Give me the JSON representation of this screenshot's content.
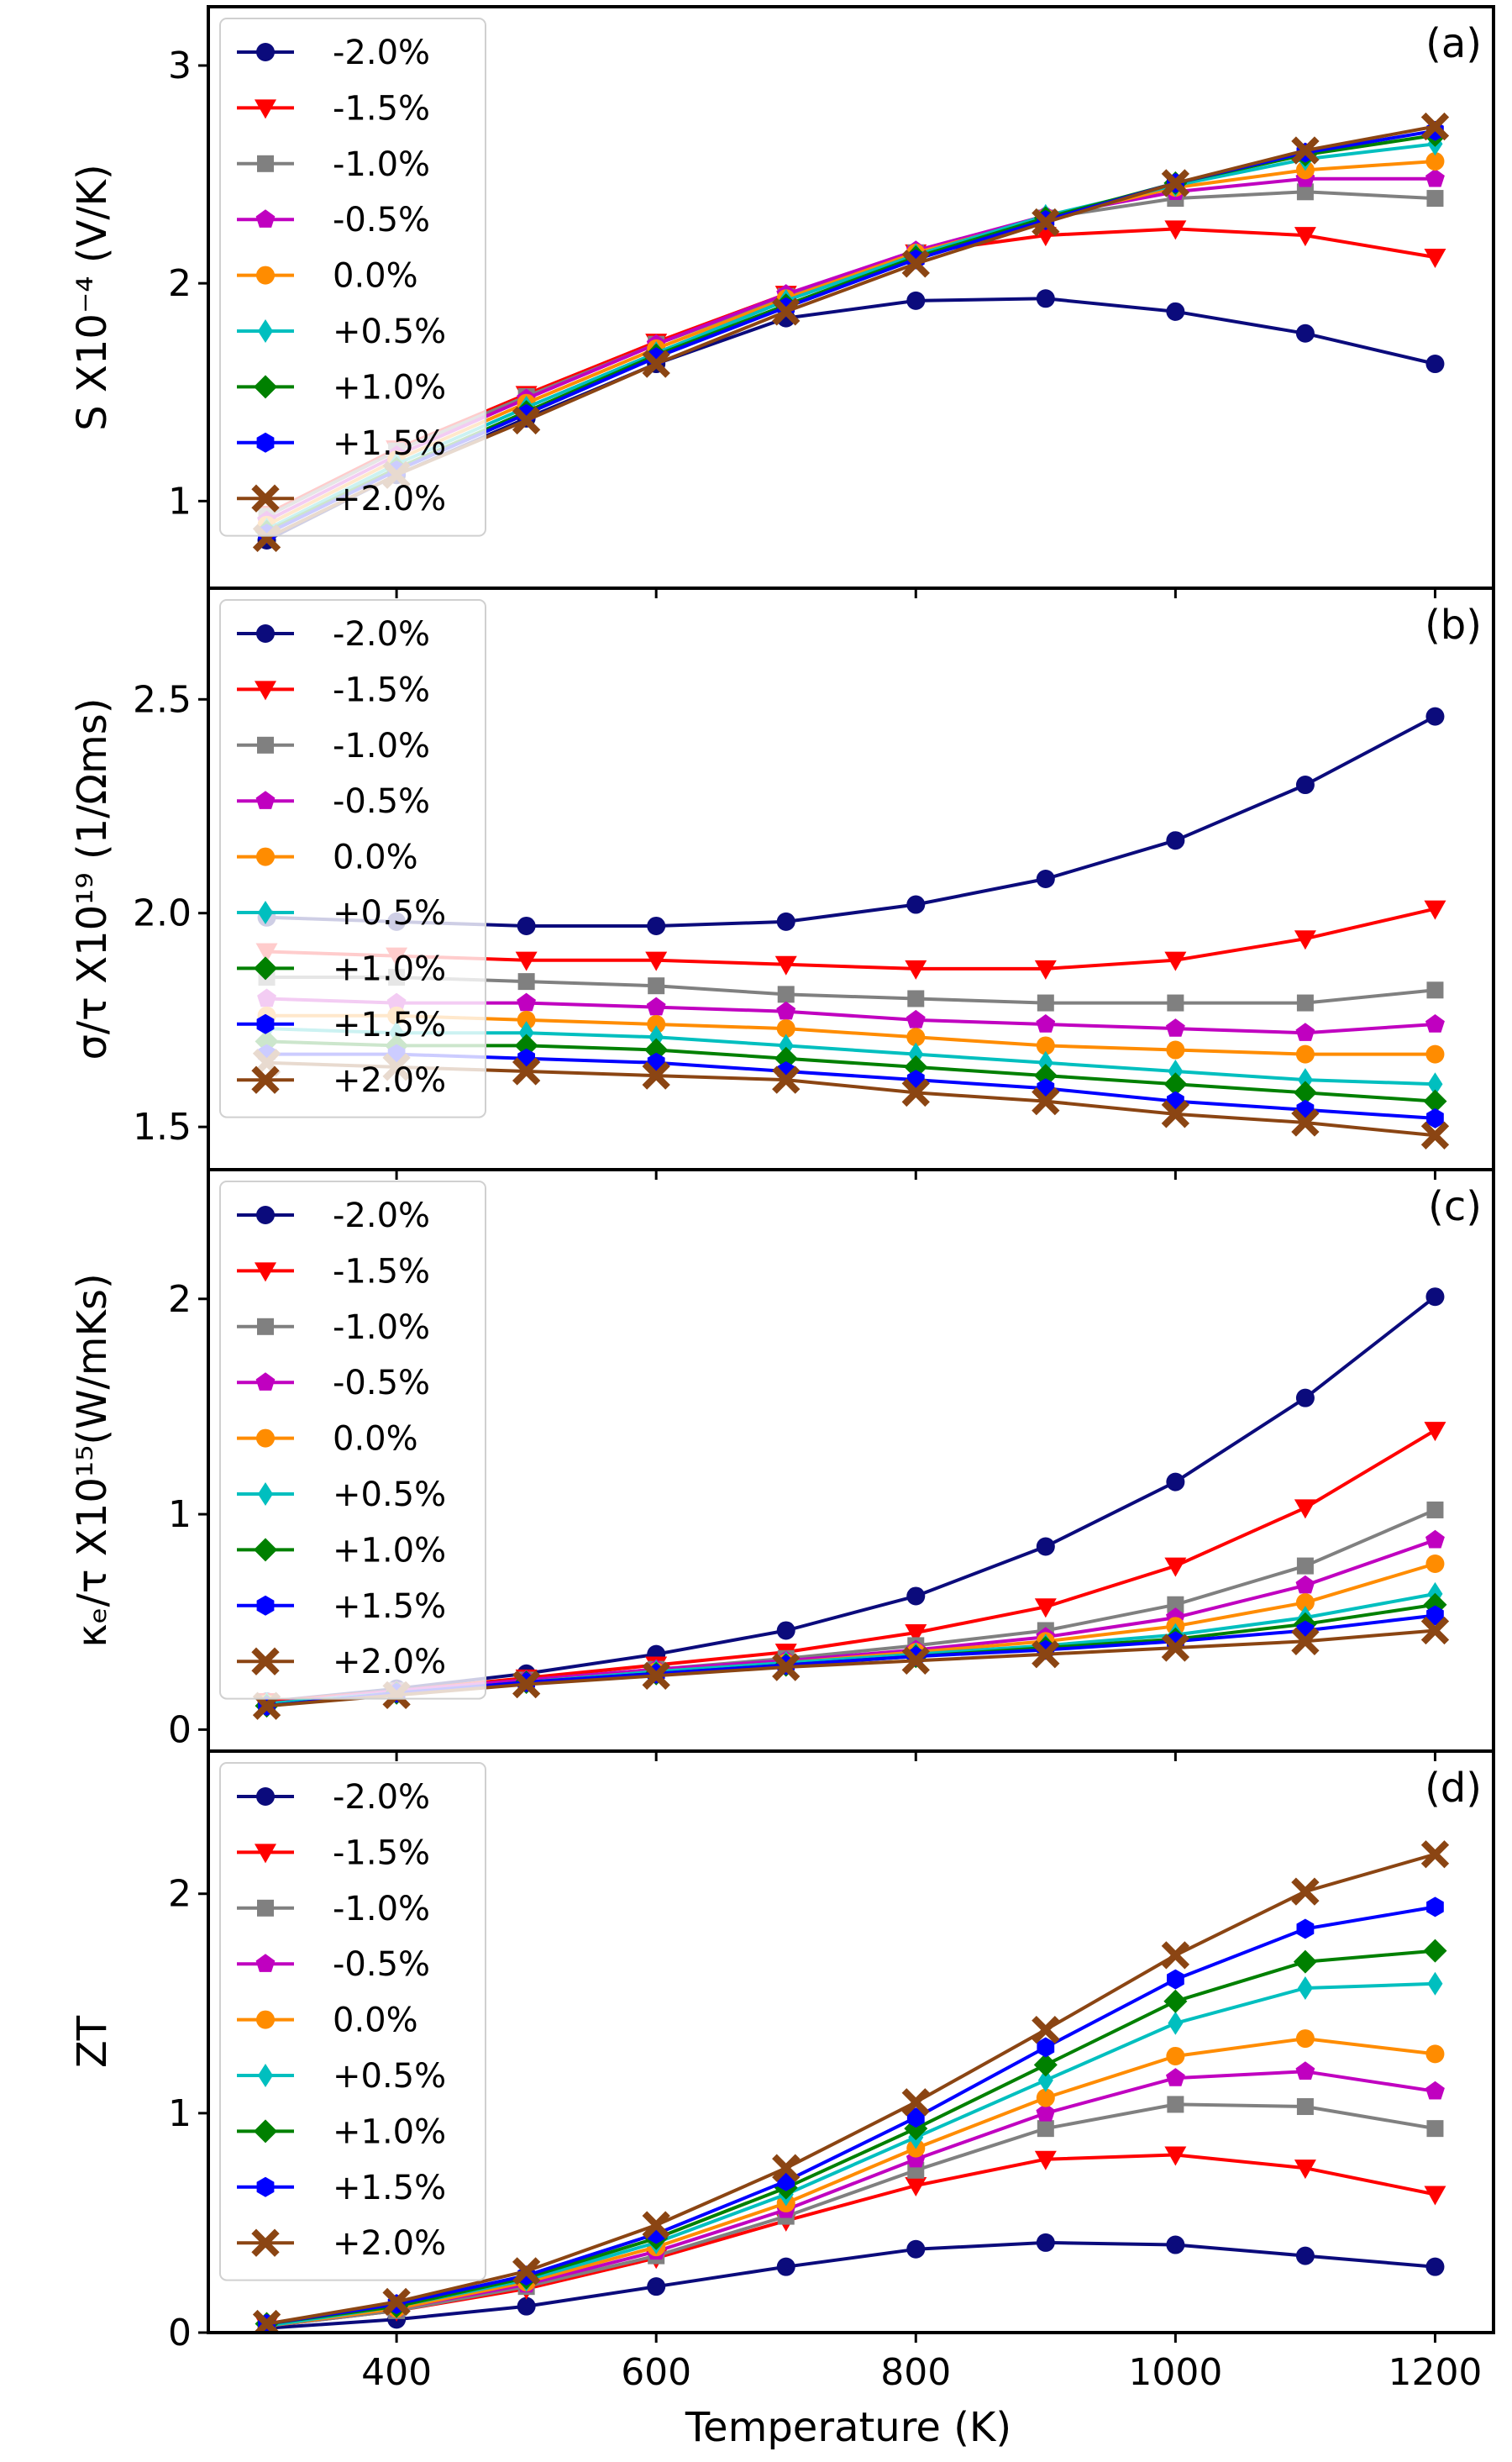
{
  "figure": {
    "xlabel": "Temperature (K)",
    "xlim": [
      255,
      1245
    ],
    "xticks": [
      400,
      600,
      800,
      1000,
      1200
    ],
    "xtick_labels": [
      "400",
      "600",
      "800",
      "1000",
      "1200"
    ]
  },
  "chart_data": [
    {
      "type": "line",
      "panel_label": "(a)",
      "ylabel": "S X10⁻⁴ (V/K)",
      "ylim": [
        0.6,
        3.27
      ],
      "yticks": [
        1,
        2,
        3
      ],
      "ytick_labels": [
        "1",
        "2",
        "3"
      ],
      "legend_position": "top-left",
      "x": [
        300,
        400,
        500,
        600,
        700,
        800,
        900,
        1000,
        1100,
        1200
      ],
      "series": [
        {
          "name": "-2.0%",
          "values": [
            0.82,
            1.12,
            1.38,
            1.63,
            1.84,
            1.92,
            1.93,
            1.87,
            1.77,
            1.63
          ]
        },
        {
          "name": "-1.5%",
          "values": [
            0.94,
            1.24,
            1.49,
            1.73,
            1.95,
            2.14,
            2.22,
            2.25,
            2.22,
            2.12
          ]
        },
        {
          "name": "-1.0%",
          "values": [
            0.93,
            1.23,
            1.48,
            1.72,
            1.94,
            2.14,
            2.3,
            2.39,
            2.42,
            2.39
          ]
        },
        {
          "name": "-0.5%",
          "values": [
            0.91,
            1.21,
            1.47,
            1.72,
            1.95,
            2.15,
            2.31,
            2.42,
            2.48,
            2.48
          ]
        },
        {
          "name": "0.0%",
          "values": [
            0.89,
            1.19,
            1.45,
            1.7,
            1.93,
            2.14,
            2.3,
            2.44,
            2.52,
            2.56
          ]
        },
        {
          "name": "+0.5%",
          "values": [
            0.87,
            1.17,
            1.43,
            1.68,
            1.92,
            2.13,
            2.31,
            2.45,
            2.57,
            2.64
          ]
        },
        {
          "name": "+1.0%",
          "values": [
            0.86,
            1.15,
            1.41,
            1.67,
            1.9,
            2.12,
            2.3,
            2.46,
            2.59,
            2.68
          ]
        },
        {
          "name": "+1.5%",
          "values": [
            0.85,
            1.14,
            1.4,
            1.66,
            1.89,
            2.11,
            2.29,
            2.46,
            2.6,
            2.7
          ]
        },
        {
          "name": "+2.0%",
          "values": [
            0.83,
            1.12,
            1.37,
            1.63,
            1.87,
            2.09,
            2.28,
            2.46,
            2.61,
            2.72
          ]
        }
      ]
    },
    {
      "type": "line",
      "panel_label": "(b)",
      "ylabel": "σ/τ X10¹⁹ (1/Ωms)",
      "ylim": [
        1.4,
        2.76
      ],
      "yticks": [
        1.5,
        2.0,
        2.5
      ],
      "ytick_labels": [
        "1.5",
        "2.0",
        "2.5"
      ],
      "legend_position": "top-left",
      "x": [
        300,
        400,
        500,
        600,
        700,
        800,
        900,
        1000,
        1100,
        1200
      ],
      "series": [
        {
          "name": "-2.0%",
          "values": [
            1.99,
            1.98,
            1.97,
            1.97,
            1.98,
            2.02,
            2.08,
            2.17,
            2.3,
            2.46
          ]
        },
        {
          "name": "-1.5%",
          "values": [
            1.91,
            1.9,
            1.89,
            1.89,
            1.88,
            1.87,
            1.87,
            1.89,
            1.94,
            2.01
          ]
        },
        {
          "name": "-1.0%",
          "values": [
            1.85,
            1.85,
            1.84,
            1.83,
            1.81,
            1.8,
            1.79,
            1.79,
            1.79,
            1.82
          ]
        },
        {
          "name": "-0.5%",
          "values": [
            1.8,
            1.79,
            1.79,
            1.78,
            1.77,
            1.75,
            1.74,
            1.73,
            1.72,
            1.74
          ]
        },
        {
          "name": "0.0%",
          "values": [
            1.76,
            1.76,
            1.75,
            1.74,
            1.73,
            1.71,
            1.69,
            1.68,
            1.67,
            1.67
          ]
        },
        {
          "name": "+0.5%",
          "values": [
            1.73,
            1.72,
            1.72,
            1.71,
            1.69,
            1.67,
            1.65,
            1.63,
            1.61,
            1.6
          ]
        },
        {
          "name": "+1.0%",
          "values": [
            1.7,
            1.69,
            1.69,
            1.68,
            1.66,
            1.64,
            1.62,
            1.6,
            1.58,
            1.56
          ]
        },
        {
          "name": "+1.5%",
          "values": [
            1.67,
            1.67,
            1.66,
            1.65,
            1.63,
            1.61,
            1.59,
            1.56,
            1.54,
            1.52
          ]
        },
        {
          "name": "+2.0%",
          "values": [
            1.65,
            1.64,
            1.63,
            1.62,
            1.61,
            1.58,
            1.56,
            1.53,
            1.51,
            1.48
          ]
        }
      ]
    },
    {
      "type": "line",
      "panel_label": "(c)",
      "ylabel": "κₑ/τ X10¹⁵(W/mKs)",
      "ylim": [
        -0.1,
        2.6
      ],
      "yticks": [
        0,
        1,
        2
      ],
      "ytick_labels": [
        "0",
        "1",
        "2"
      ],
      "legend_position": "top-left",
      "x": [
        300,
        400,
        500,
        600,
        700,
        800,
        900,
        1000,
        1100,
        1200
      ],
      "series": [
        {
          "name": "-2.0%",
          "values": [
            0.13,
            0.19,
            0.26,
            0.35,
            0.46,
            0.62,
            0.85,
            1.15,
            1.54,
            2.01
          ]
        },
        {
          "name": "-1.5%",
          "values": [
            0.13,
            0.18,
            0.24,
            0.3,
            0.36,
            0.45,
            0.57,
            0.76,
            1.03,
            1.39
          ]
        },
        {
          "name": "-1.0%",
          "values": [
            0.12,
            0.18,
            0.23,
            0.28,
            0.33,
            0.39,
            0.46,
            0.58,
            0.76,
            1.02
          ]
        },
        {
          "name": "-0.5%",
          "values": [
            0.12,
            0.18,
            0.23,
            0.28,
            0.32,
            0.37,
            0.43,
            0.52,
            0.67,
            0.88
          ]
        },
        {
          "name": "0.0%",
          "values": [
            0.12,
            0.17,
            0.22,
            0.27,
            0.31,
            0.36,
            0.41,
            0.48,
            0.59,
            0.77
          ]
        },
        {
          "name": "+0.5%",
          "values": [
            0.12,
            0.17,
            0.22,
            0.27,
            0.31,
            0.35,
            0.39,
            0.44,
            0.52,
            0.63
          ]
        },
        {
          "name": "+1.0%",
          "values": [
            0.11,
            0.17,
            0.22,
            0.26,
            0.3,
            0.34,
            0.38,
            0.42,
            0.49,
            0.58
          ]
        },
        {
          "name": "+1.5%",
          "values": [
            0.11,
            0.17,
            0.22,
            0.26,
            0.3,
            0.34,
            0.37,
            0.41,
            0.46,
            0.53
          ]
        },
        {
          "name": "+2.0%",
          "values": [
            0.11,
            0.16,
            0.21,
            0.25,
            0.29,
            0.32,
            0.35,
            0.38,
            0.41,
            0.46
          ]
        }
      ]
    },
    {
      "type": "line",
      "panel_label": "(d)",
      "ylabel": "ZT",
      "ylim": [
        0,
        2.65
      ],
      "yticks": [
        0,
        1,
        2
      ],
      "ytick_labels": [
        "0",
        "1",
        "2"
      ],
      "legend_position": "top-left",
      "x": [
        300,
        400,
        500,
        600,
        700,
        800,
        900,
        1000,
        1100,
        1200
      ],
      "series": [
        {
          "name": "-2.0%",
          "values": [
            0.02,
            0.06,
            0.12,
            0.21,
            0.3,
            0.38,
            0.41,
            0.4,
            0.35,
            0.3
          ]
        },
        {
          "name": "-1.5%",
          "values": [
            0.03,
            0.1,
            0.2,
            0.34,
            0.51,
            0.67,
            0.79,
            0.81,
            0.75,
            0.63
          ]
        },
        {
          "name": "-1.0%",
          "values": [
            0.03,
            0.1,
            0.21,
            0.35,
            0.53,
            0.74,
            0.93,
            1.04,
            1.03,
            0.93
          ]
        },
        {
          "name": "-0.5%",
          "values": [
            0.03,
            0.11,
            0.22,
            0.37,
            0.56,
            0.79,
            1.0,
            1.16,
            1.19,
            1.1
          ]
        },
        {
          "name": "0.0%",
          "values": [
            0.03,
            0.11,
            0.23,
            0.39,
            0.59,
            0.84,
            1.07,
            1.26,
            1.34,
            1.27
          ]
        },
        {
          "name": "+0.5%",
          "values": [
            0.03,
            0.12,
            0.24,
            0.41,
            0.63,
            0.89,
            1.15,
            1.41,
            1.57,
            1.59
          ]
        },
        {
          "name": "+1.0%",
          "values": [
            0.04,
            0.12,
            0.25,
            0.43,
            0.66,
            0.93,
            1.22,
            1.51,
            1.69,
            1.74
          ]
        },
        {
          "name": "+1.5%",
          "values": [
            0.04,
            0.13,
            0.26,
            0.45,
            0.69,
            0.98,
            1.3,
            1.61,
            1.84,
            1.94
          ]
        },
        {
          "name": "+2.0%",
          "values": [
            0.04,
            0.14,
            0.28,
            0.49,
            0.75,
            1.05,
            1.38,
            1.72,
            2.01,
            2.18
          ]
        }
      ]
    }
  ],
  "styles": {
    "colors": [
      "#0b0b7c",
      "#ff0000",
      "#808080",
      "#c000c0",
      "#ff8c00",
      "#00bfbf",
      "#008000",
      "#0000ff",
      "#8b4513"
    ],
    "markers": [
      "circle",
      "triangle-down",
      "square",
      "pentagon",
      "circle",
      "diamond-thin",
      "diamond",
      "hexagon",
      "x-cross"
    ],
    "line_color": "#000000"
  }
}
